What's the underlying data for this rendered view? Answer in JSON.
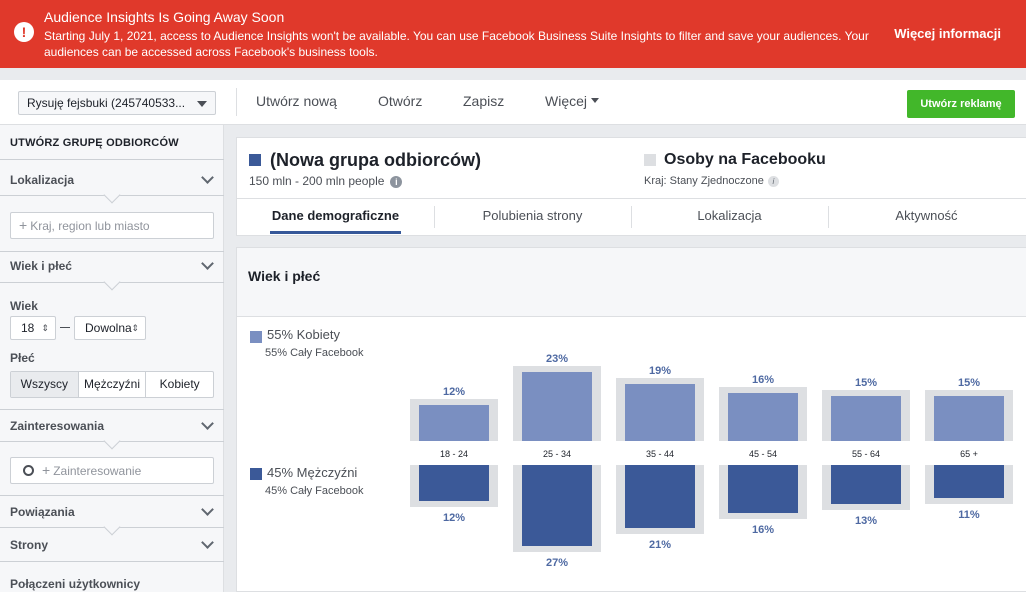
{
  "banner": {
    "title": "Audience Insights Is Going Away Soon",
    "text": "Starting July 1, 2021, access to Audience Insights won't be available. You can use Facebook Business Suite Insights to filter and save your audiences. Your audiences can be accessed across Facebook's business tools.",
    "more": "Więcej informacji",
    "icon": "alert-icon",
    "color": "#e0392b"
  },
  "toolbar": {
    "audience_select": "Rysuję fejsbuki (245740533...",
    "create_new": "Utwórz nową",
    "open": "Otwórz",
    "save": "Zapisz",
    "more": "Więcej",
    "create_ad": "Utwórz reklamę"
  },
  "sidebar": {
    "heading": "UTWÓRZ GRUPĘ ODBIORCÓW",
    "location": {
      "label": "Lokalizacja",
      "placeholder": "Kraj, region lub miasto"
    },
    "age_gender": {
      "label": "Wiek i płeć",
      "age_label": "Wiek",
      "age_from": "18",
      "age_to": "Dowolna",
      "gender_label": "Płeć",
      "gender_options": [
        "Wszyscy",
        "Mężczyźni",
        "Kobiety"
      ],
      "gender_selected": "Wszyscy"
    },
    "interests": {
      "label": "Zainteresowania",
      "placeholder": "Zainteresowanie"
    },
    "connections": "Powiązania",
    "pages": "Strony",
    "connected_users": "Połączeni użytkownicy"
  },
  "header": {
    "group_title": "(Nowa grupa odbiorców)",
    "group_size": "150 mln - 200 mln people",
    "fb_title": "Osoby na Facebooku",
    "fb_country": "Kraj: Stany Zjednoczone",
    "tabs": [
      "Dane demograficzne",
      "Polubienia strony",
      "Lokalizacja",
      "Aktywność"
    ],
    "active_tab": "Dane demograficzne",
    "colors": {
      "group": "#3b5998",
      "facebook": "#dddfe2"
    }
  },
  "chart_section": {
    "title": "Wiek i płeć",
    "women_label": "55% Kobiety",
    "women_fb": "55% Cały Facebook",
    "men_label": "45% Mężczyźni",
    "men_fb": "45% Cały Facebook"
  },
  "chart_data": {
    "type": "bar",
    "categories": [
      "18 - 24",
      "25 - 34",
      "35 - 44",
      "45 - 54",
      "55 - 64",
      "65 +"
    ],
    "series": [
      {
        "name": "55% Kobiety",
        "values": [
          12,
          23,
          19,
          16,
          15,
          15
        ],
        "color": "#7a8fc1"
      },
      {
        "name": "45% Mężczyźni",
        "values": [
          12,
          27,
          21,
          16,
          13,
          11
        ],
        "color": "#3b5998"
      }
    ],
    "comparison_color": "#dddfe2",
    "value_suffix": "%"
  }
}
